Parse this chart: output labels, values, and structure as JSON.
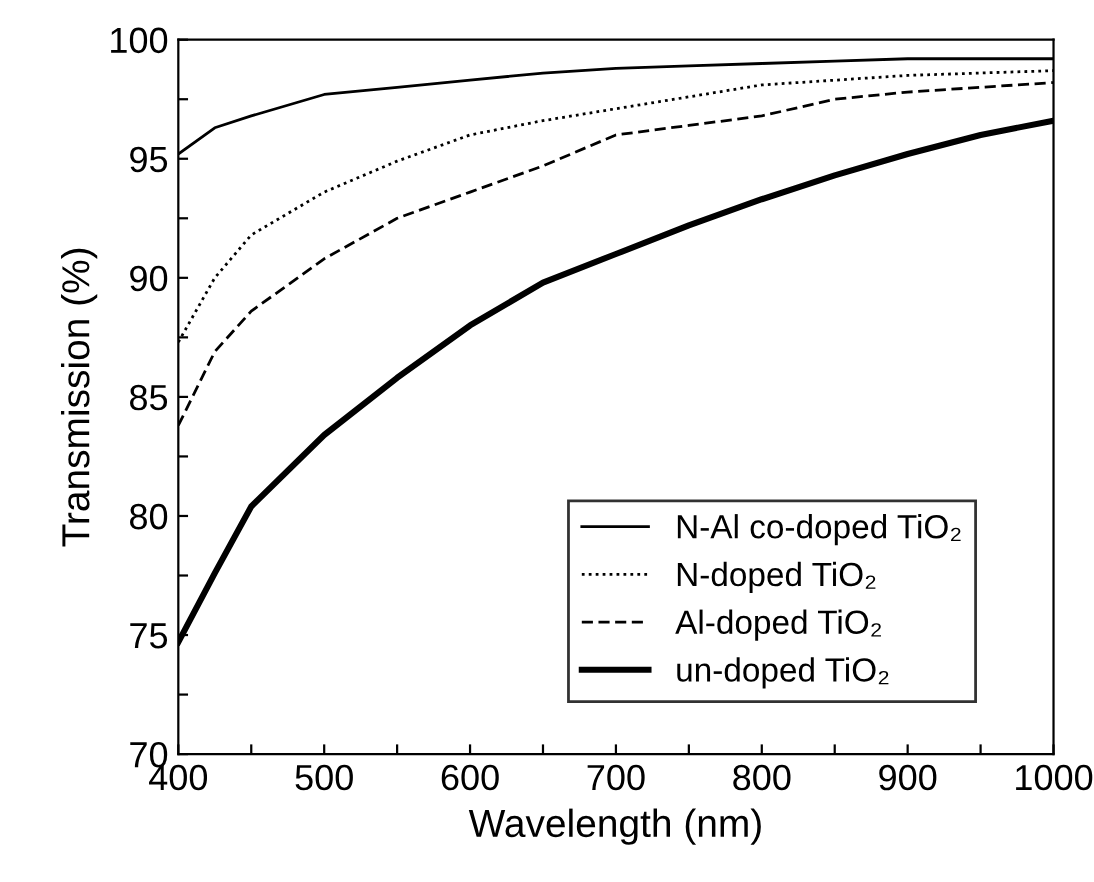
{
  "chart_data": {
    "type": "line",
    "xlabel": "Wavelength (nm)",
    "ylabel": "Transmission (%)",
    "xlim": [
      400,
      1000
    ],
    "ylim": [
      70,
      100
    ],
    "xticks": [
      400,
      {
        "value": 450,
        "label": null
      },
      500,
      {
        "value": 550,
        "label": null
      },
      600,
      {
        "value": 650,
        "label": null
      },
      700,
      {
        "value": 750,
        "label": null
      },
      800,
      {
        "value": 850,
        "label": null
      },
      900,
      {
        "value": 950,
        "label": null
      },
      1000
    ],
    "yticks": [
      70,
      {
        "value": 72.5,
        "label": null
      },
      75,
      {
        "value": 77.5,
        "label": null
      },
      80,
      {
        "value": 82.5,
        "label": null
      },
      85,
      {
        "value": 87.5,
        "label": null
      },
      90,
      {
        "value": 92.5,
        "label": null
      },
      95,
      {
        "value": 97.5,
        "label": null
      },
      100
    ],
    "x": [
      400,
      425,
      450,
      500,
      550,
      600,
      650,
      700,
      750,
      800,
      850,
      900,
      950,
      1000
    ],
    "legend": "bottom right",
    "grid": false,
    "marker": "none",
    "series": [
      {
        "name": "N-Al co-doped TiO₂",
        "color": "#000000",
        "line_style": "solid",
        "values": [
          95.2,
          96.3,
          96.8,
          97.7,
          98.0,
          98.3,
          98.6,
          98.8,
          98.9,
          99.0,
          99.1,
          99.2,
          99.2,
          99.2
        ]
      },
      {
        "name": "N-doped TiO₂",
        "color": "#000000",
        "line_style": "dotted",
        "values": [
          87.3,
          90.0,
          91.8,
          93.6,
          94.9,
          96.0,
          96.6,
          97.1,
          97.6,
          98.1,
          98.3,
          98.5,
          98.6,
          98.7
        ]
      },
      {
        "name": "Al-doped TiO₂",
        "color": "#000000",
        "line_style": "dashed",
        "values": [
          83.8,
          86.9,
          88.6,
          90.8,
          92.5,
          93.6,
          94.7,
          96.0,
          96.4,
          96.8,
          97.5,
          97.8,
          98.0,
          98.2
        ]
      },
      {
        "name": "un-doped TiO₂",
        "color": "#000000",
        "line_style": "solid",
        "values": [
          74.7,
          77.6,
          80.4,
          83.4,
          85.8,
          88.0,
          89.8,
          91.0,
          92.2,
          93.3,
          94.3,
          95.2,
          96.0,
          96.6
        ]
      }
    ]
  }
}
